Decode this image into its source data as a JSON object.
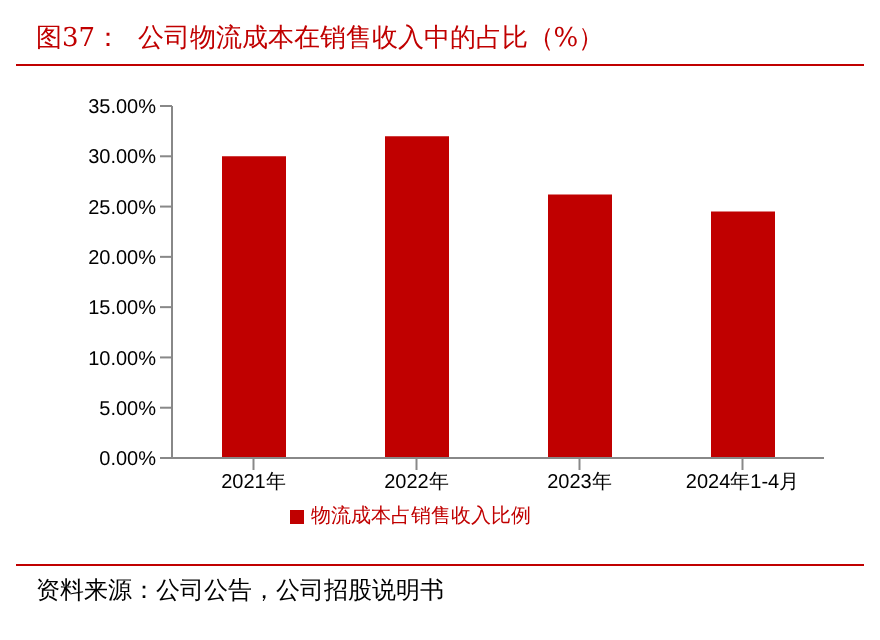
{
  "chart_data": {
    "type": "bar",
    "title": "图37：  公司物流成本在销售收入中的占比（%）",
    "categories": [
      "2021年",
      "2022年",
      "2023年",
      "2024年1-4月"
    ],
    "series": [
      {
        "name": "物流成本占销售收入比例",
        "color": "#c00000",
        "values": [
          30.0,
          32.0,
          26.2,
          24.5
        ]
      }
    ],
    "ylim": [
      0,
      35
    ],
    "yticks": [
      {
        "value": 0,
        "label": "0.00%"
      },
      {
        "value": 5,
        "label": "5.00%"
      },
      {
        "value": 10,
        "label": "10.00%"
      },
      {
        "value": 15,
        "label": "15.00%"
      },
      {
        "value": 20,
        "label": "20.00%"
      },
      {
        "value": 25,
        "label": "25.00%"
      },
      {
        "value": 30,
        "label": "30.00%"
      },
      {
        "value": 35,
        "label": "35.00%"
      }
    ],
    "grid": false,
    "legend": "bottom",
    "annotations": [
      "资料来源：公司公告，公司招股说明书"
    ]
  }
}
